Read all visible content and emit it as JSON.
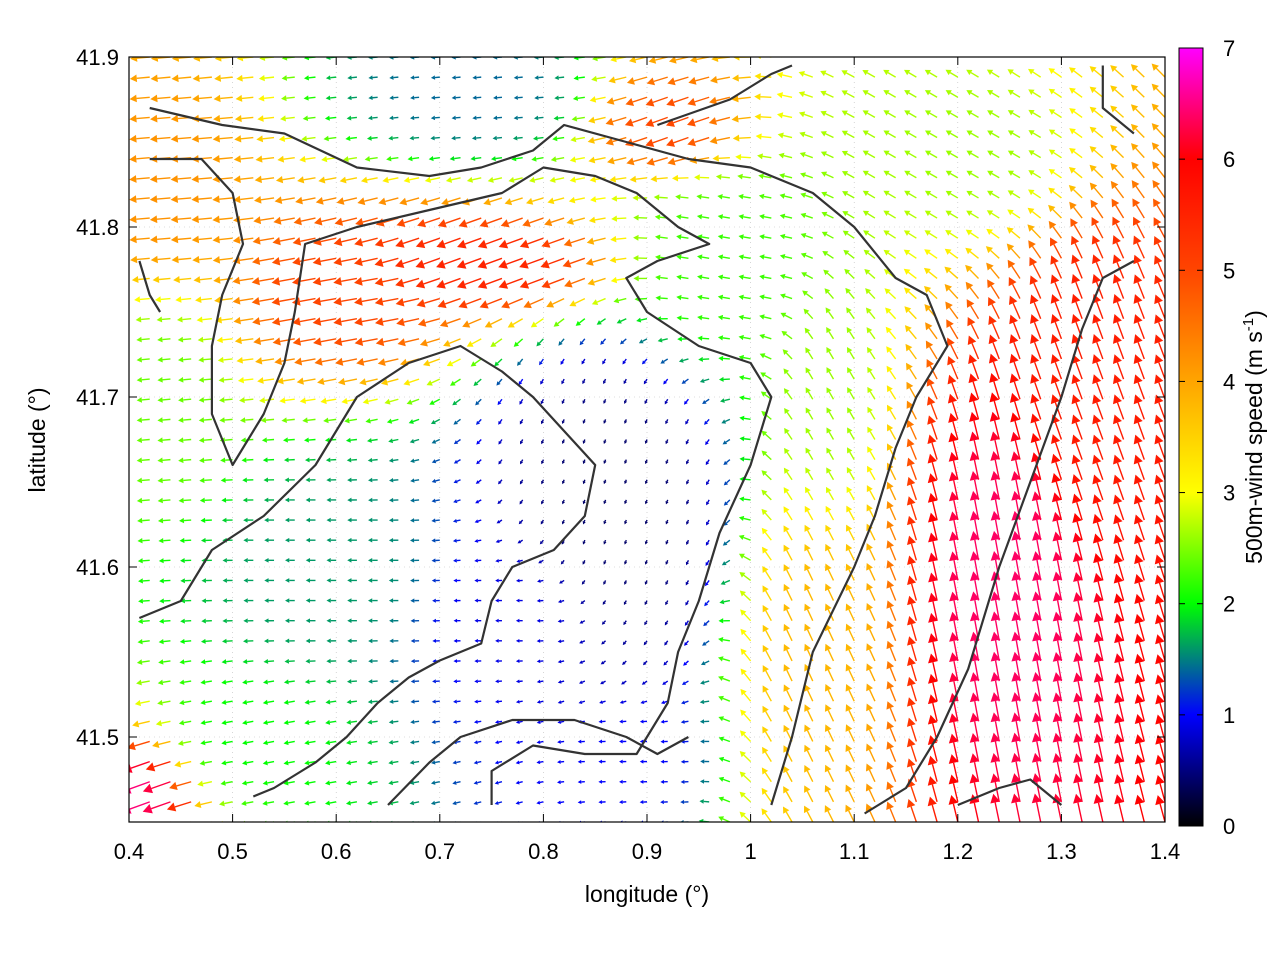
{
  "chart_data": {
    "type": "vector-field",
    "xlabel": "longitude (°)",
    "ylabel": "latitude (°)",
    "colorbar_label": "500m-wind speed (m s",
    "colorbar_label_sup": "-1",
    "colorbar_label_end": ")",
    "xlim": [
      0.4,
      1.4
    ],
    "ylim": [
      41.45,
      41.9
    ],
    "x_ticks": [
      "0.4",
      "0.5",
      "0.6",
      "0.7",
      "0.8",
      "0.9",
      "1",
      "1.1",
      "1.2",
      "1.3",
      "1.4"
    ],
    "y_ticks": [
      "41.5",
      "41.6",
      "41.7",
      "41.8",
      "41.9"
    ],
    "colorbar_range": [
      0,
      7
    ],
    "colorbar_ticks": [
      "0",
      "1",
      "2",
      "3",
      "4",
      "5",
      "6",
      "7"
    ],
    "colormap": [
      "#000000",
      "#0000ff",
      "#00ff00",
      "#ffff00",
      "#ffa500",
      "#ff4500",
      "#ff0000",
      "#ff00ff"
    ],
    "grid": "dotted",
    "contour_color": "#333333",
    "wind_zones": [
      {
        "lon": 0.87,
        "lat": 41.64,
        "r_lon": 0.09,
        "r_lat": 0.09,
        "speed": 0.4,
        "dir_deg": 250
      },
      {
        "lon": 0.77,
        "lat": 41.57,
        "r_lon": 0.09,
        "r_lat": 0.045,
        "speed": 0.9,
        "dir_deg": 180
      },
      {
        "lon": 0.6,
        "lat": 41.59,
        "r_lon": 0.1,
        "r_lat": 0.05,
        "speed": 1.6,
        "dir_deg": 180
      },
      {
        "lon": 0.52,
        "lat": 41.5,
        "r_lon": 0.09,
        "r_lat": 0.04,
        "speed": 2.0,
        "dir_deg": 190
      },
      {
        "lon": 0.76,
        "lat": 41.78,
        "r_lon": 0.11,
        "r_lat": 0.025,
        "speed": 5.5,
        "dir_deg": 200
      },
      {
        "lon": 0.62,
        "lat": 41.76,
        "r_lon": 0.07,
        "r_lat": 0.03,
        "speed": 5.0,
        "dir_deg": 190
      },
      {
        "lon": 0.44,
        "lat": 41.82,
        "r_lon": 0.06,
        "r_lat": 0.05,
        "speed": 4.2,
        "dir_deg": 185
      },
      {
        "lon": 0.44,
        "lat": 41.7,
        "r_lon": 0.05,
        "r_lat": 0.06,
        "speed": 2.4,
        "dir_deg": 185
      },
      {
        "lon": 0.74,
        "lat": 41.88,
        "r_lon": 0.09,
        "r_lat": 0.03,
        "speed": 1.4,
        "dir_deg": 185
      },
      {
        "lon": 0.93,
        "lat": 41.86,
        "r_lon": 0.06,
        "r_lat": 0.03,
        "speed": 5.0,
        "dir_deg": 200
      },
      {
        "lon": 0.98,
        "lat": 41.78,
        "r_lon": 0.1,
        "r_lat": 0.06,
        "speed": 2.2,
        "dir_deg": 170
      },
      {
        "lon": 1.08,
        "lat": 41.7,
        "r_lon": 0.05,
        "r_lat": 0.08,
        "speed": 2.6,
        "dir_deg": 120
      },
      {
        "lon": 1.07,
        "lat": 41.55,
        "r_lon": 0.06,
        "r_lat": 0.08,
        "speed": 3.8,
        "dir_deg": 115
      },
      {
        "lon": 1.25,
        "lat": 41.58,
        "r_lon": 0.08,
        "r_lat": 0.1,
        "speed": 6.4,
        "dir_deg": 100
      },
      {
        "lon": 1.33,
        "lat": 41.7,
        "r_lon": 0.07,
        "r_lat": 0.09,
        "speed": 5.6,
        "dir_deg": 110
      },
      {
        "lon": 1.22,
        "lat": 41.84,
        "r_lon": 0.1,
        "r_lat": 0.05,
        "speed": 2.6,
        "dir_deg": 150
      },
      {
        "lon": 0.42,
        "lat": 41.47,
        "r_lon": 0.05,
        "r_lat": 0.03,
        "speed": 6.5,
        "dir_deg": 200
      },
      {
        "lon": 0.88,
        "lat": 41.49,
        "r_lon": 0.06,
        "r_lat": 0.03,
        "speed": 1.0,
        "dir_deg": 180
      }
    ],
    "contours": [
      [
        [
          0.42,
          41.87
        ],
        [
          0.49,
          41.86
        ],
        [
          0.55,
          41.855
        ],
        [
          0.62,
          41.835
        ],
        [
          0.69,
          41.83
        ],
        [
          0.74,
          41.835
        ],
        [
          0.79,
          41.845
        ],
        [
          0.82,
          41.86
        ],
        [
          0.88,
          41.85
        ],
        [
          0.94,
          41.84
        ],
        [
          1.0,
          41.835
        ],
        [
          1.06,
          41.82
        ],
        [
          1.1,
          41.8
        ],
        [
          1.14,
          41.77
        ],
        [
          1.17,
          41.76
        ],
        [
          1.19,
          41.73
        ],
        [
          1.16,
          41.7
        ],
        [
          1.14,
          41.67
        ],
        [
          1.12,
          41.63
        ],
        [
          1.1,
          41.6
        ],
        [
          1.06,
          41.55
        ],
        [
          1.04,
          41.5
        ],
        [
          1.02,
          41.46
        ]
      ],
      [
        [
          0.42,
          41.84
        ],
        [
          0.47,
          41.84
        ],
        [
          0.5,
          41.82
        ],
        [
          0.51,
          41.79
        ],
        [
          0.49,
          41.76
        ],
        [
          0.48,
          41.73
        ],
        [
          0.48,
          41.69
        ],
        [
          0.5,
          41.66
        ],
        [
          0.53,
          41.69
        ],
        [
          0.55,
          41.72
        ],
        [
          0.56,
          41.75
        ],
        [
          0.57,
          41.79
        ],
        [
          0.62,
          41.8
        ],
        [
          0.69,
          41.81
        ],
        [
          0.76,
          41.82
        ],
        [
          0.8,
          41.835
        ],
        [
          0.85,
          41.83
        ],
        [
          0.89,
          41.82
        ],
        [
          0.93,
          41.8
        ],
        [
          0.96,
          41.79
        ],
        [
          0.91,
          41.78
        ],
        [
          0.88,
          41.77
        ],
        [
          0.9,
          41.75
        ],
        [
          0.95,
          41.73
        ],
        [
          1.0,
          41.72
        ],
        [
          1.02,
          41.7
        ],
        [
          1.0,
          41.66
        ],
        [
          0.97,
          41.62
        ],
        [
          0.95,
          41.58
        ],
        [
          0.93,
          41.55
        ],
        [
          0.92,
          41.52
        ],
        [
          0.89,
          41.49
        ],
        [
          0.84,
          41.49
        ],
        [
          0.79,
          41.495
        ],
        [
          0.75,
          41.48
        ],
        [
          0.75,
          41.46
        ]
      ],
      [
        [
          0.41,
          41.57
        ],
        [
          0.45,
          41.58
        ],
        [
          0.48,
          41.61
        ],
        [
          0.53,
          41.63
        ],
        [
          0.58,
          41.66
        ],
        [
          0.62,
          41.7
        ],
        [
          0.67,
          41.72
        ],
        [
          0.72,
          41.73
        ],
        [
          0.76,
          41.715
        ],
        [
          0.79,
          41.7
        ],
        [
          0.82,
          41.68
        ],
        [
          0.85,
          41.66
        ],
        [
          0.84,
          41.63
        ],
        [
          0.81,
          41.61
        ],
        [
          0.77,
          41.6
        ],
        [
          0.75,
          41.58
        ],
        [
          0.74,
          41.555
        ],
        [
          0.7,
          41.545
        ],
        [
          0.67,
          41.535
        ],
        [
          0.64,
          41.52
        ],
        [
          0.61,
          41.5
        ],
        [
          0.58,
          41.485
        ],
        [
          0.54,
          41.47
        ],
        [
          0.52,
          41.465
        ]
      ],
      [
        [
          0.65,
          41.46
        ],
        [
          0.69,
          41.485
        ],
        [
          0.72,
          41.5
        ],
        [
          0.77,
          41.51
        ],
        [
          0.83,
          41.51
        ],
        [
          0.88,
          41.5
        ],
        [
          0.91,
          41.49
        ],
        [
          0.94,
          41.5
        ]
      ],
      [
        [
          1.11,
          41.455
        ],
        [
          1.15,
          41.47
        ],
        [
          1.18,
          41.5
        ],
        [
          1.21,
          41.54
        ],
        [
          1.24,
          41.6
        ],
        [
          1.27,
          41.65
        ],
        [
          1.3,
          41.7
        ],
        [
          1.32,
          41.74
        ],
        [
          1.34,
          41.77
        ],
        [
          1.37,
          41.78
        ]
      ],
      [
        [
          0.91,
          41.86
        ],
        [
          0.98,
          41.875
        ],
        [
          1.02,
          41.89
        ],
        [
          1.04,
          41.895
        ]
      ],
      [
        [
          1.34,
          41.895
        ],
        [
          1.34,
          41.87
        ],
        [
          1.37,
          41.855
        ]
      ],
      [
        [
          0.41,
          41.78
        ],
        [
          0.42,
          41.76
        ],
        [
          0.43,
          41.75
        ]
      ],
      [
        [
          1.2,
          41.46
        ],
        [
          1.24,
          41.47
        ],
        [
          1.27,
          41.475
        ],
        [
          1.3,
          41.46
        ]
      ]
    ]
  }
}
